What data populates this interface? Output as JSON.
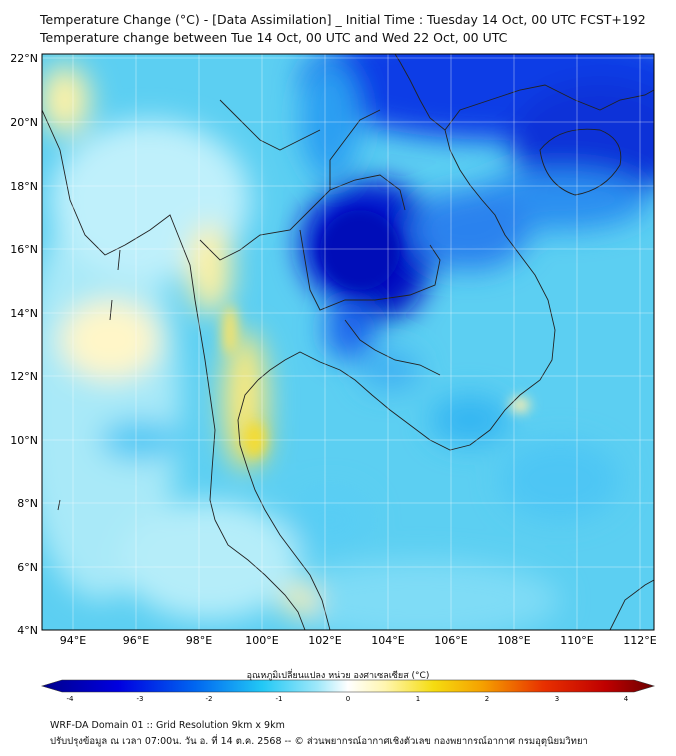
{
  "header": {
    "title_line1": "Temperature Change (°C) - [Data Assimilation] _ Initial Time : Tuesday 14 Oct, 00 UTC FCST+192",
    "title_line2": "Temperature change between Tue 14 Oct, 00 UTC and Wed 22 Oct, 00 UTC"
  },
  "map": {
    "lat_labels": [
      "22°N",
      "20°N",
      "18°N",
      "16°N",
      "14°N",
      "12°N",
      "10°N",
      "8°N",
      "6°N",
      "4°N"
    ],
    "lon_labels": [
      "94°E",
      "96°E",
      "98°E",
      "100°E",
      "102°E",
      "104°E",
      "106°E",
      "108°E",
      "110°E",
      "112°E"
    ]
  },
  "colorbar": {
    "label": "อุณหภูมิเปลี่ยนแปลง หน่วย องศาเซลเซียส (°C)",
    "ticks": [
      "-4",
      "-3",
      "-2",
      "-1",
      "0",
      "1",
      "2",
      "3",
      "4"
    ],
    "colors": {
      "cold_dark": "#00008b",
      "cold_mid": "#0050e6",
      "cool": "#33ccf5",
      "light": "#ccf2fb",
      "neutral": "#ffffff",
      "warm_light": "#fff4a0",
      "warm": "#f5d800",
      "hot": "#e06000",
      "hot_dark": "#7a0000"
    }
  },
  "footer": {
    "line1": "WRF-DA Domain 01 :: Grid Resolution 9km x 9km",
    "line2": "ปรับปรุงข้อมูล ณ เวลา 07:00น. วัน อ. ที่ 14 ต.ค. 2568 -- © ส่วนพยากรณ์อากาศเชิงตัวเลข กองพยากรณ์อากาศ กรมอุตุนิยมวิทยา"
  }
}
